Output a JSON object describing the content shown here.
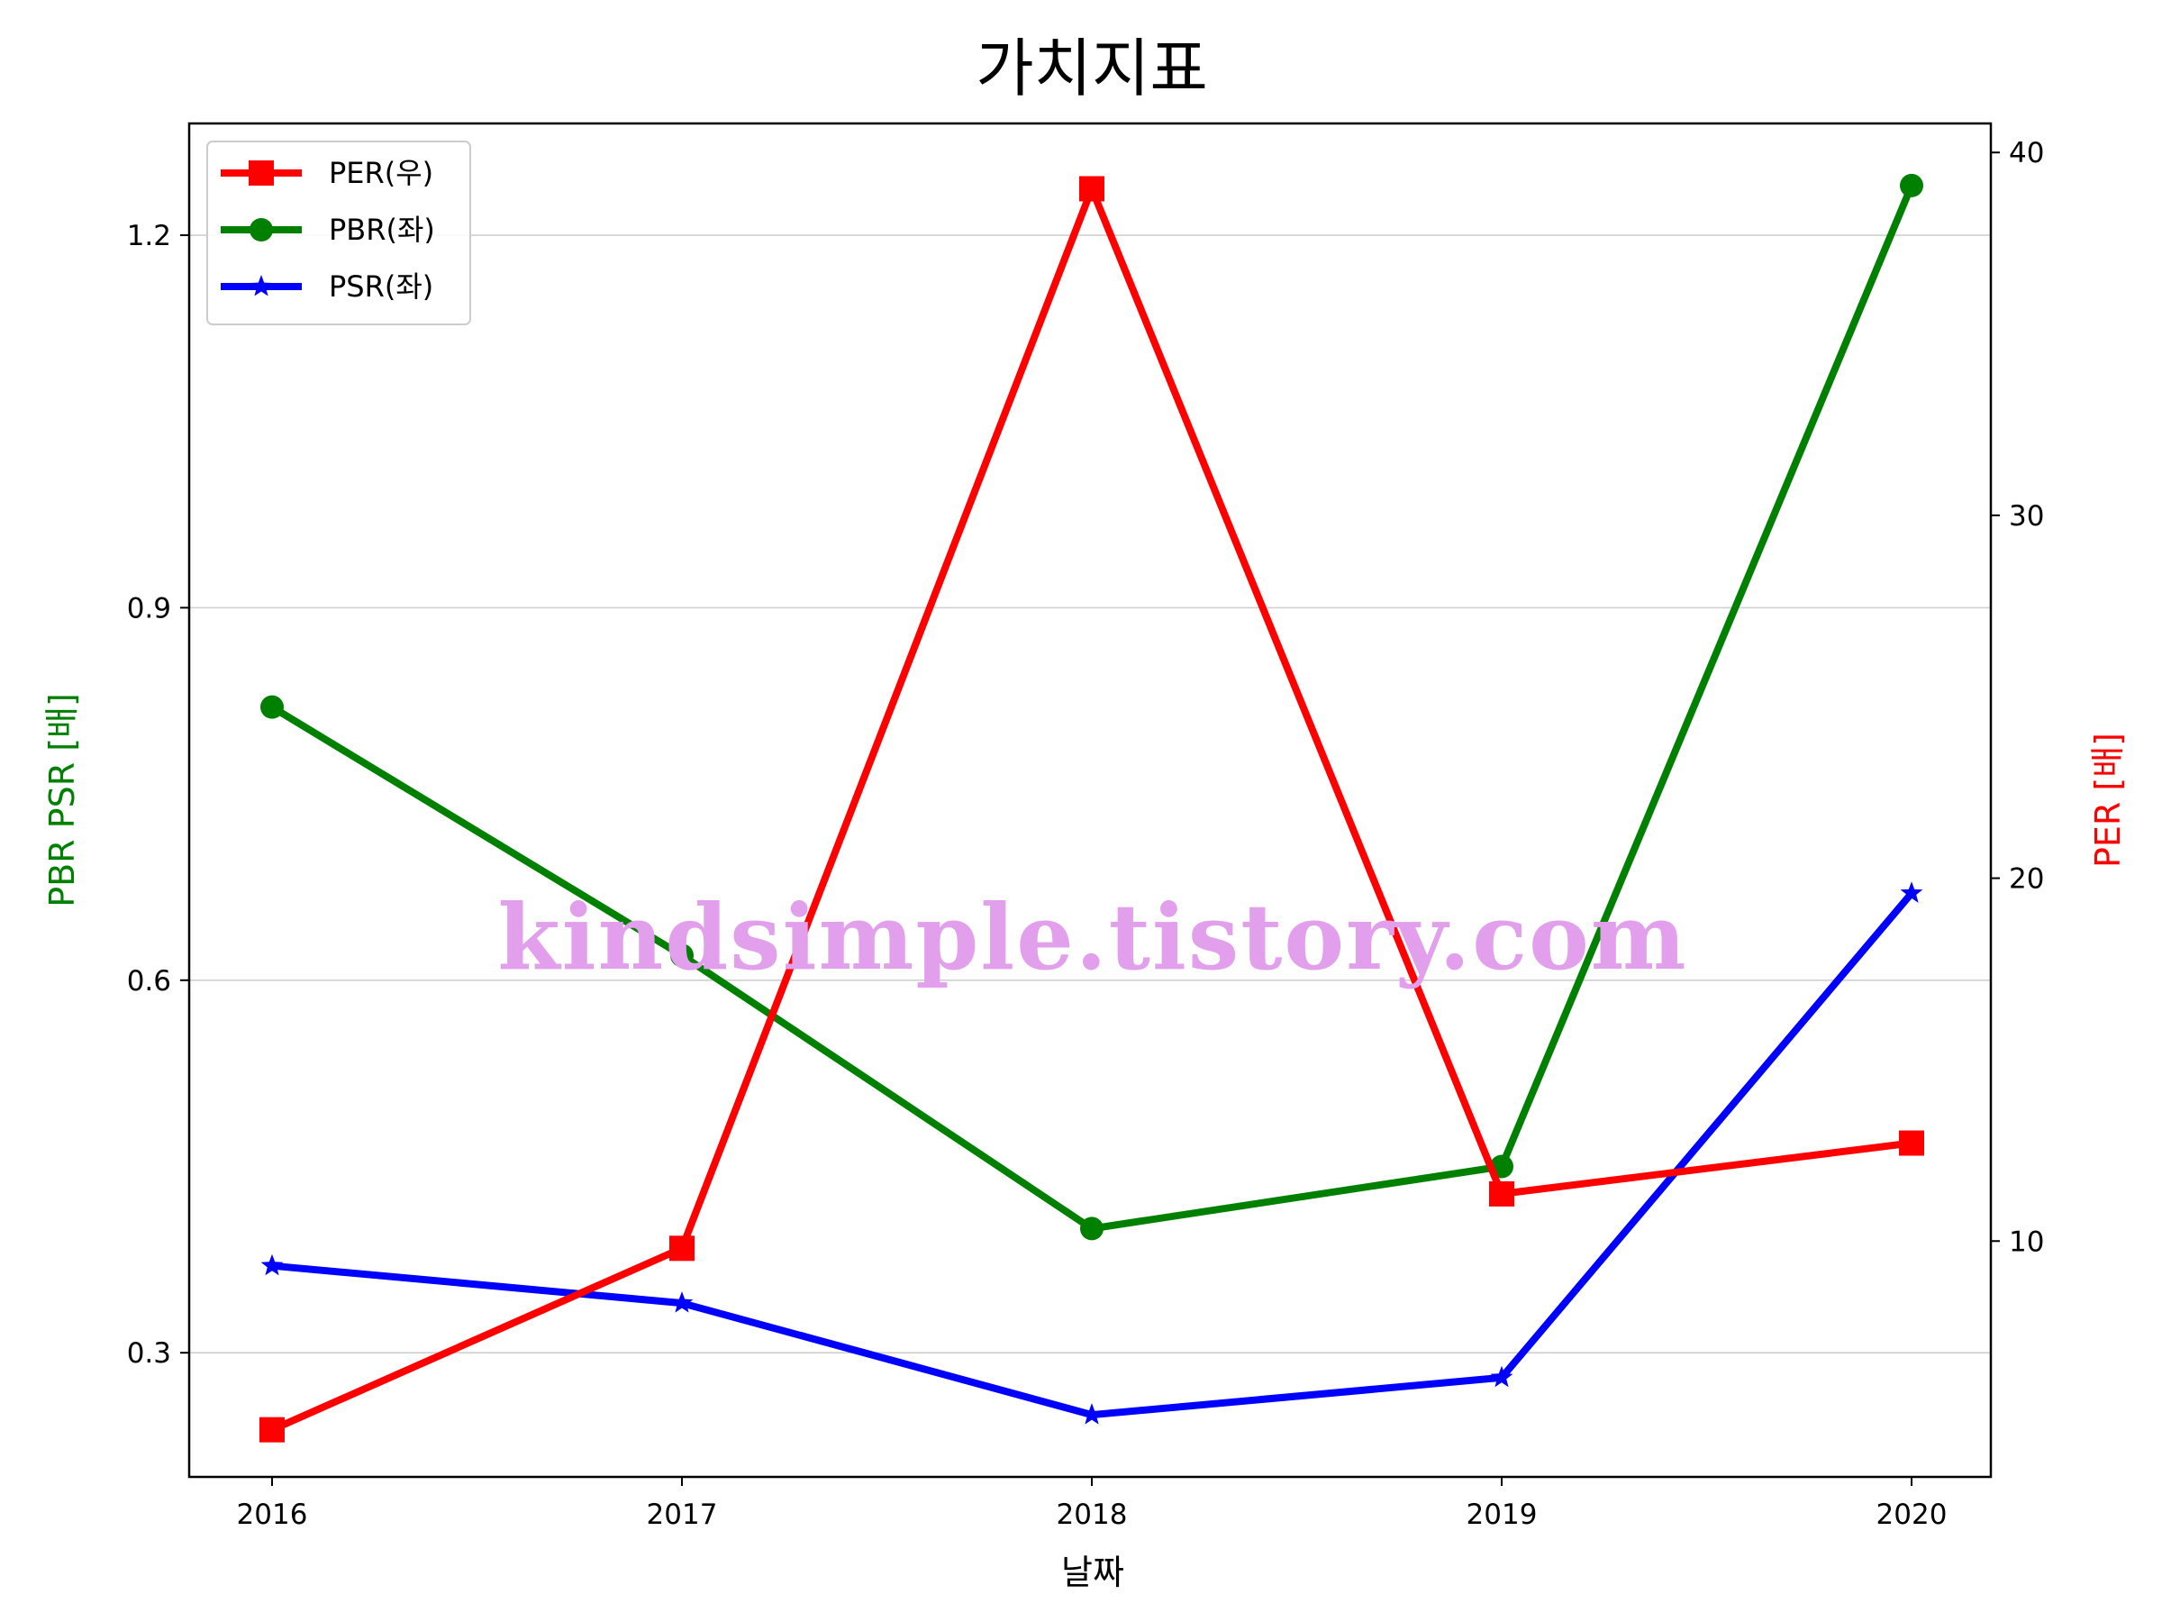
{
  "chart_data": {
    "type": "line",
    "title": "가치지표",
    "xlabel": "날짜",
    "ylabel_left": "PBR PSR [배]",
    "ylabel_right": "PER [배]",
    "categories": [
      "2016",
      "2017",
      "2018",
      "2019",
      "2020"
    ],
    "left_axis": {
      "ylim": [
        0.2,
        1.29
      ],
      "ticks": [
        "0.3",
        "0.6",
        "0.9",
        "1.2"
      ],
      "tick_values": [
        0.3,
        0.6,
        0.9,
        1.2
      ],
      "grid": true
    },
    "right_axis": {
      "ylim": [
        3.5,
        40.8
      ],
      "ticks": [
        "10",
        "20",
        "30",
        "40"
      ],
      "tick_values": [
        10,
        20,
        30,
        40
      ]
    },
    "series": [
      {
        "name": "PER(우)",
        "axis": "right",
        "color": "#ff0000",
        "marker": "square",
        "values": [
          4.8,
          9.8,
          39.0,
          11.3,
          12.7
        ]
      },
      {
        "name": "PBR(좌)",
        "axis": "left",
        "color": "#008000",
        "marker": "circle",
        "values": [
          0.82,
          0.62,
          0.4,
          0.45,
          1.24
        ]
      },
      {
        "name": "PSR(좌)",
        "axis": "left",
        "color": "#0000ff",
        "marker": "star",
        "values": [
          0.37,
          0.34,
          0.25,
          0.28,
          0.67
        ]
      }
    ],
    "legend_position": "top-left",
    "watermark": "kindsimple.tistory.com"
  }
}
